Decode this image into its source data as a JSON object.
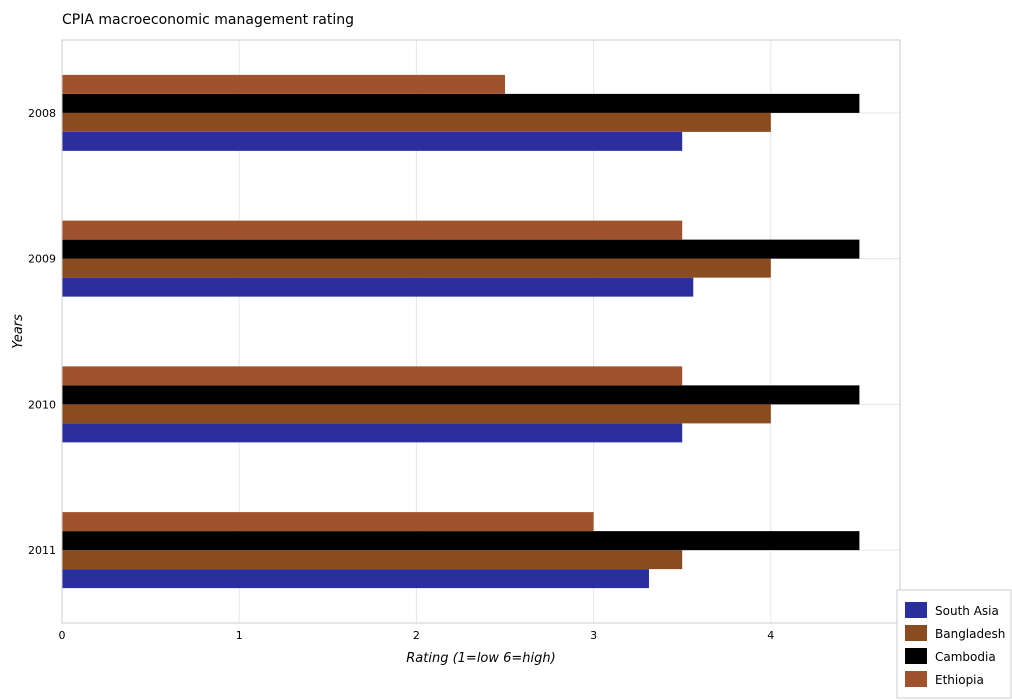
{
  "chart_data": {
    "type": "bar",
    "orientation": "horizontal",
    "title": "CPIA macroeconomic management rating",
    "xlabel": "Rating (1=low 6=high)",
    "ylabel": "Years",
    "xlim": [
      0,
      4.73
    ],
    "xticks": [
      "0",
      "1",
      "2",
      "3",
      "4"
    ],
    "categories": [
      "2008",
      "2009",
      "2010",
      "2011"
    ],
    "series": [
      {
        "name": "South Asia",
        "color": "#2b2f9e",
        "values": [
          3.5,
          3.5625,
          3.5,
          3.3125
        ]
      },
      {
        "name": "Bangladesh",
        "color": "#8a4b1e",
        "values": [
          4.0,
          4.0,
          4.0,
          3.5
        ]
      },
      {
        "name": "Cambodia",
        "color": "#000000",
        "values": [
          4.5,
          4.5,
          4.5,
          4.5
        ]
      },
      {
        "name": "Ethiopia",
        "color": "#a0522d",
        "values": [
          2.5,
          3.5,
          3.5,
          3.0
        ]
      }
    ],
    "grid": true,
    "legend_position": "bottom-right"
  }
}
